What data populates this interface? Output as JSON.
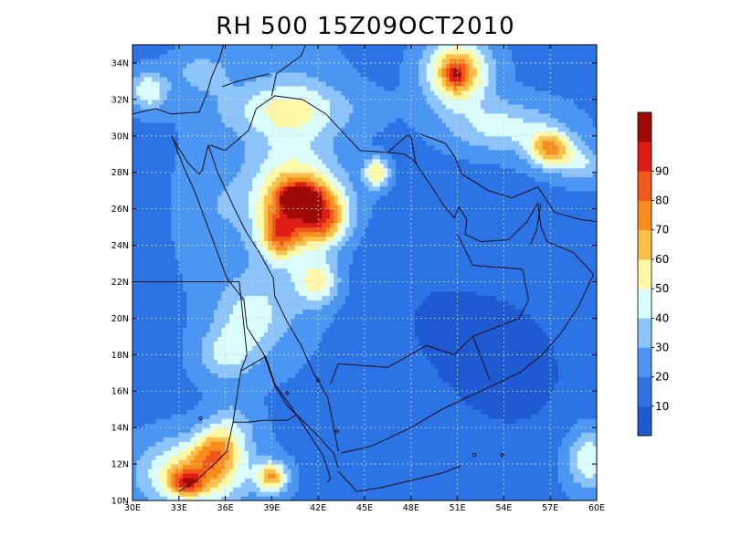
{
  "title": "RH 500 15Z09OCT2010",
  "map": {
    "lon_min": 30,
    "lon_max": 60,
    "lat_min": 10,
    "lat_max": 35,
    "x_ticks": [
      "30E",
      "33E",
      "36E",
      "39E",
      "42E",
      "45E",
      "48E",
      "51E",
      "54E",
      "57E",
      "60E"
    ],
    "x_tick_values": [
      30,
      33,
      36,
      39,
      42,
      45,
      48,
      51,
      54,
      57,
      60
    ],
    "y_ticks": [
      "10N",
      "12N",
      "14N",
      "16N",
      "18N",
      "20N",
      "22N",
      "24N",
      "26N",
      "28N",
      "30N",
      "32N",
      "34N"
    ],
    "y_tick_values": [
      10,
      12,
      14,
      16,
      18,
      20,
      22,
      24,
      26,
      28,
      30,
      32,
      34
    ],
    "grid": true,
    "background_value": 18,
    "field_blobs": [
      {
        "lon": 40.0,
        "lat": 31.5,
        "rx": 4.5,
        "ry": 1.4,
        "amp": 22
      },
      {
        "lon": 34.5,
        "lat": 33.5,
        "rx": 2.0,
        "ry": 1.2,
        "amp": 16
      },
      {
        "lon": 31.0,
        "lat": 32.5,
        "rx": 1.2,
        "ry": 1.0,
        "amp": 32
      },
      {
        "lon": 40.2,
        "lat": 27.0,
        "rx": 3.0,
        "ry": 6.5,
        "amp": 26
      },
      {
        "lon": 41.0,
        "lat": 26.5,
        "rx": 2.6,
        "ry": 1.6,
        "amp": 48
      },
      {
        "lon": 40.8,
        "lat": 26.6,
        "rx": 1.0,
        "ry": 0.6,
        "amp": 70
      },
      {
        "lon": 42.2,
        "lat": 25.3,
        "rx": 1.6,
        "ry": 1.3,
        "amp": 42
      },
      {
        "lon": 39.5,
        "lat": 24.6,
        "rx": 1.2,
        "ry": 1.2,
        "amp": 44
      },
      {
        "lon": 42.0,
        "lat": 22.0,
        "rx": 1.3,
        "ry": 1.2,
        "amp": 30
      },
      {
        "lon": 45.8,
        "lat": 28.0,
        "rx": 0.8,
        "ry": 0.8,
        "amp": 42
      },
      {
        "lon": 37.5,
        "lat": 20.0,
        "rx": 2.2,
        "ry": 2.0,
        "amp": 24
      },
      {
        "lon": 36.0,
        "lat": 18.0,
        "rx": 1.8,
        "ry": 1.4,
        "amp": 22
      },
      {
        "lon": 35.0,
        "lat": 26.0,
        "rx": 2.0,
        "ry": 4.0,
        "amp": 10
      },
      {
        "lon": 51.0,
        "lat": 33.5,
        "rx": 2.0,
        "ry": 1.8,
        "amp": 58
      },
      {
        "lon": 50.9,
        "lat": 33.4,
        "rx": 0.6,
        "ry": 0.6,
        "amp": 30
      },
      {
        "lon": 54.0,
        "lat": 30.5,
        "rx": 3.5,
        "ry": 1.4,
        "amp": 26
      },
      {
        "lon": 57.0,
        "lat": 29.3,
        "rx": 1.4,
        "ry": 1.0,
        "amp": 50
      },
      {
        "lon": 59.0,
        "lat": 28.5,
        "rx": 1.5,
        "ry": 1.0,
        "amp": 22
      },
      {
        "lon": 34.0,
        "lat": 11.5,
        "rx": 3.2,
        "ry": 1.8,
        "amp": 50
      },
      {
        "lon": 33.5,
        "lat": 11.0,
        "rx": 1.0,
        "ry": 0.6,
        "amp": 40
      },
      {
        "lon": 35.3,
        "lat": 12.8,
        "rx": 1.3,
        "ry": 1.3,
        "amp": 30
      },
      {
        "lon": 36.5,
        "lat": 13.8,
        "rx": 1.5,
        "ry": 1.8,
        "amp": 18
      },
      {
        "lon": 39.0,
        "lat": 11.3,
        "rx": 1.0,
        "ry": 0.8,
        "amp": 50
      },
      {
        "lon": 59.5,
        "lat": 12.3,
        "rx": 1.4,
        "ry": 1.6,
        "amp": 32
      },
      {
        "lon": 49.5,
        "lat": 20.0,
        "rx": 6.0,
        "ry": 6.0,
        "amp": -8
      },
      {
        "lon": 55.0,
        "lat": 17.0,
        "rx": 4.0,
        "ry": 4.0,
        "amp": -10
      }
    ]
  },
  "colorbar": {
    "tick_labels": [
      "10",
      "20",
      "30",
      "40",
      "50",
      "60",
      "70",
      "80",
      "90"
    ],
    "colors": [
      "#1e5ad2",
      "#2c74e6",
      "#4a96f2",
      "#8bc3fa",
      "#dafcfc",
      "#fff8a6",
      "#fcc04a",
      "#fa8c1e",
      "#f2581a",
      "#dc1e14",
      "#a00a06"
    ]
  }
}
